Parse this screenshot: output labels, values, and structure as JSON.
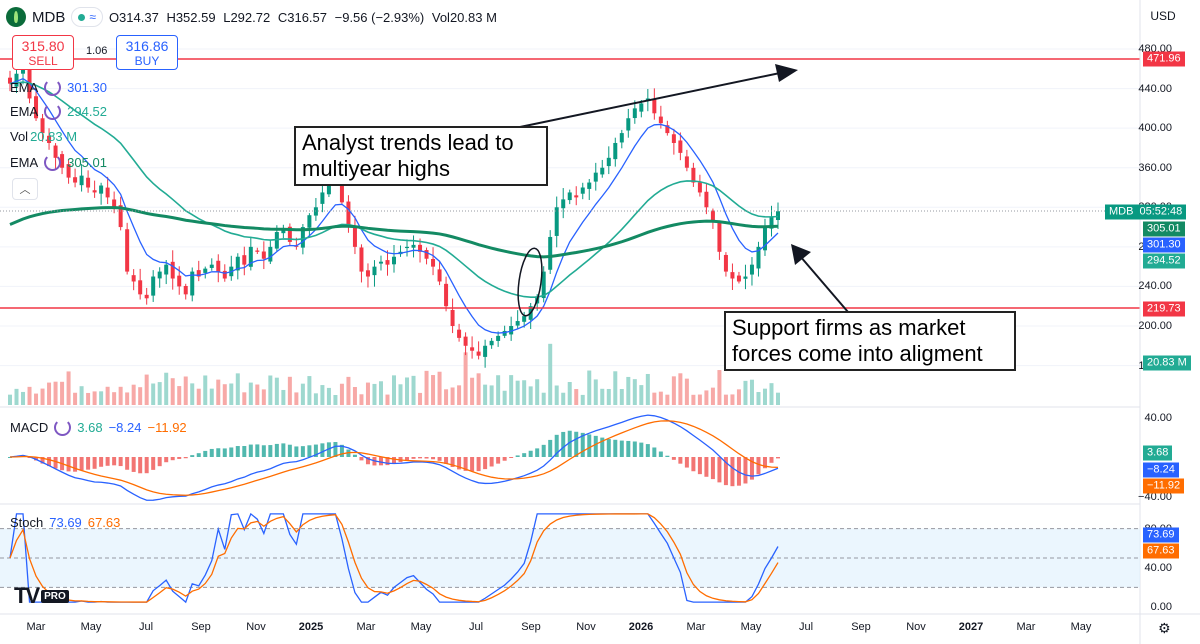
{
  "header": {
    "symbol": "MDB",
    "wave_icon": "≈",
    "ohlc": {
      "o": "O314.37",
      "h": "H352.59",
      "l": "L292.72",
      "c": "C316.57",
      "chg": "−9.56 (−2.93%)",
      "vol": "Vol20.83 M"
    }
  },
  "trade": {
    "sell_price": "315.80",
    "sell_label": "SELL",
    "spread": "1.06",
    "buy_price": "316.86",
    "buy_label": "BUY"
  },
  "legend": {
    "ema1": {
      "name": "EMA",
      "value": "301.30"
    },
    "ema2": {
      "name": "EMA",
      "value": "294.52"
    },
    "vol": {
      "name": "Vol",
      "value": "20.83 M"
    },
    "ema3": {
      "name": "EMA",
      "value": "305.01"
    },
    "collapse": "︿"
  },
  "currency": "USD",
  "price_axis": [
    "480.00",
    "440.00",
    "400.00",
    "360.00",
    "320.00",
    "280.00",
    "240.00",
    "200.00",
    "160.00"
  ],
  "price_tags": {
    "resistance": "471.96",
    "last": "MDB",
    "countdown": "05:52:48",
    "ema3": "305.01",
    "ema1": "301.30",
    "ema2": "294.52",
    "support": "219.73",
    "volume": "20.83 M"
  },
  "macd": {
    "name": "MACD",
    "v1": "3.68",
    "v2": "−8.24",
    "v3": "−11.92",
    "axis": [
      "40.00",
      "0.00",
      "−40.00"
    ],
    "tags": [
      "3.68",
      "−8.24",
      "−11.92"
    ]
  },
  "stoch": {
    "name": "Stoch",
    "k": "73.69",
    "d": "67.63",
    "axis": [
      "80.00",
      "40.00",
      "0.00"
    ],
    "tags": [
      "73.69",
      "67.63"
    ]
  },
  "time_axis": [
    {
      "label": "Mar",
      "bold": false
    },
    {
      "label": "May",
      "bold": false
    },
    {
      "label": "Jul",
      "bold": false
    },
    {
      "label": "Sep",
      "bold": false
    },
    {
      "label": "Nov",
      "bold": false
    },
    {
      "label": "2025",
      "bold": true
    },
    {
      "label": "Mar",
      "bold": false
    },
    {
      "label": "May",
      "bold": false
    },
    {
      "label": "Jul",
      "bold": false
    },
    {
      "label": "Sep",
      "bold": false
    },
    {
      "label": "Nov",
      "bold": false
    },
    {
      "label": "2026",
      "bold": true
    },
    {
      "label": "Mar",
      "bold": false
    },
    {
      "label": "May",
      "bold": false
    },
    {
      "label": "Jul",
      "bold": false
    },
    {
      "label": "Sep",
      "bold": false
    },
    {
      "label": "Nov",
      "bold": false
    },
    {
      "label": "2027",
      "bold": true
    },
    {
      "label": "Mar",
      "bold": false
    },
    {
      "label": "May",
      "bold": false
    }
  ],
  "annotations": {
    "top": "Analyst trends lead to multiyear highs",
    "bottom": "Support firms as market forces come into aligment"
  },
  "logo": {
    "mark": "TV",
    "pro": "PRO"
  },
  "colors": {
    "up": "#089981",
    "down": "#f23645",
    "ema_fast": "#2962ff",
    "ema_mid": "#22ab94",
    "ema_slow": "#138a63",
    "macd_line": "#2962ff",
    "signal": "#ff6d00",
    "stoch_k": "#2962ff",
    "stoch_d": "#ff6d00"
  },
  "chart_data": {
    "type": "candlestick",
    "price_levels": {
      "resistance": 471.96,
      "support": 219.73
    },
    "last_close": 316.57,
    "closes": [
      445,
      455,
      460,
      430,
      410,
      395,
      385,
      370,
      360,
      350,
      345,
      352,
      340,
      335,
      342,
      330,
      320,
      300,
      255,
      245,
      232,
      228,
      250,
      255,
      262,
      248,
      240,
      232,
      255,
      250,
      258,
      262,
      255,
      248,
      260,
      270,
      262,
      280,
      275,
      268,
      280,
      295,
      298,
      285,
      280,
      300,
      312,
      320,
      335,
      345,
      350,
      325,
      300,
      280,
      255,
      250,
      260,
      265,
      262,
      270,
      275,
      280,
      282,
      275,
      268,
      260,
      245,
      220,
      200,
      188,
      180,
      175,
      170,
      180,
      185,
      190,
      195,
      200,
      205,
      210,
      220,
      230,
      255,
      290,
      320,
      328,
      335,
      330,
      340,
      345,
      355,
      360,
      370,
      385,
      395,
      410,
      420,
      425,
      430,
      415,
      405,
      395,
      385,
      375,
      360,
      345,
      335,
      320,
      305,
      275,
      255,
      248,
      245,
      250,
      262,
      280,
      300,
      310,
      316
    ]
  }
}
